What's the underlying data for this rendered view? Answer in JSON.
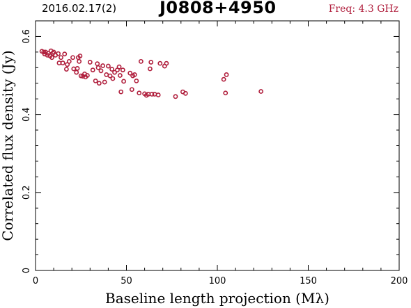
{
  "header": {
    "left": "2016.02.17(2)",
    "title": "J0808+4950",
    "right": "Freq: 4.3 GHz"
  },
  "colors": {
    "points": "#b01e3c",
    "frequency_label": "#b01e3c",
    "axes": "#000000"
  },
  "chart_data": {
    "type": "scatter",
    "title": "J0808+4950",
    "xlabel": "Baseline length projection (Mλ)",
    "ylabel": "Correlated flux density (Jy)",
    "xlim": [
      0,
      200
    ],
    "ylim": [
      0,
      0.64
    ],
    "xticks": [
      "0",
      "50",
      "100",
      "150",
      "200"
    ],
    "yticks": [
      "0",
      "0.2",
      "0.4",
      "0.6"
    ],
    "grid": false,
    "series": [
      {
        "points": [
          [
            3.5,
            0.562
          ],
          [
            4.5,
            0.56
          ],
          [
            5.0,
            0.555
          ],
          [
            5.5,
            0.56
          ],
          [
            6.5,
            0.552
          ],
          [
            7.0,
            0.557
          ],
          [
            8.0,
            0.55
          ],
          [
            8.5,
            0.563
          ],
          [
            9.0,
            0.546
          ],
          [
            9.5,
            0.557
          ],
          [
            10.0,
            0.56
          ],
          [
            11.0,
            0.552
          ],
          [
            12.5,
            0.556
          ],
          [
            13.0,
            0.532
          ],
          [
            14.0,
            0.546
          ],
          [
            15.0,
            0.532
          ],
          [
            16.0,
            0.555
          ],
          [
            17.0,
            0.516
          ],
          [
            17.5,
            0.528
          ],
          [
            18.5,
            0.536
          ],
          [
            20.5,
            0.546
          ],
          [
            21.0,
            0.517
          ],
          [
            22.5,
            0.508
          ],
          [
            23.0,
            0.518
          ],
          [
            23.5,
            0.546
          ],
          [
            24.0,
            0.536
          ],
          [
            24.5,
            0.55
          ],
          [
            25.0,
            0.499
          ],
          [
            26.0,
            0.498
          ],
          [
            27.0,
            0.504
          ],
          [
            27.5,
            0.496
          ],
          [
            28.5,
            0.5
          ],
          [
            30.0,
            0.534
          ],
          [
            31.5,
            0.514
          ],
          [
            33.0,
            0.486
          ],
          [
            34.0,
            0.53
          ],
          [
            34.5,
            0.52
          ],
          [
            35.0,
            0.48
          ],
          [
            36.0,
            0.512
          ],
          [
            37.0,
            0.525
          ],
          [
            38.0,
            0.483
          ],
          [
            39.0,
            0.502
          ],
          [
            40.0,
            0.524
          ],
          [
            41.0,
            0.499
          ],
          [
            42.0,
            0.516
          ],
          [
            42.5,
            0.492
          ],
          [
            43.5,
            0.508
          ],
          [
            45.0,
            0.514
          ],
          [
            46.0,
            0.522
          ],
          [
            46.5,
            0.5
          ],
          [
            47.0,
            0.458
          ],
          [
            48.0,
            0.514
          ],
          [
            48.5,
            0.485
          ],
          [
            52.0,
            0.506
          ],
          [
            53.0,
            0.464
          ],
          [
            53.5,
            0.499
          ],
          [
            54.5,
            0.502
          ],
          [
            55.5,
            0.486
          ],
          [
            57.0,
            0.455
          ],
          [
            58.0,
            0.536
          ],
          [
            60.0,
            0.453
          ],
          [
            61.0,
            0.449
          ],
          [
            62.0,
            0.452
          ],
          [
            63.0,
            0.517
          ],
          [
            63.5,
            0.534
          ],
          [
            64.0,
            0.452
          ],
          [
            65.5,
            0.452
          ],
          [
            67.5,
            0.45
          ],
          [
            68.5,
            0.531
          ],
          [
            71.0,
            0.524
          ],
          [
            72.0,
            0.531
          ],
          [
            77.0,
            0.446
          ],
          [
            81.0,
            0.458
          ],
          [
            82.5,
            0.454
          ],
          [
            103.5,
            0.49
          ],
          [
            104.5,
            0.455
          ],
          [
            105.0,
            0.502
          ],
          [
            124.0,
            0.459
          ]
        ]
      }
    ]
  }
}
